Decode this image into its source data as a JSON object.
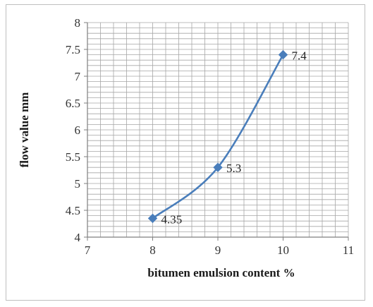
{
  "chart_data": {
    "type": "line",
    "xlabel": "bitumen emulsion content %",
    "ylabel": "flow value mm",
    "xlim": [
      7,
      11
    ],
    "ylim": [
      4,
      8
    ],
    "x_ticks": [
      "7",
      "8",
      "9",
      "10",
      "11"
    ],
    "y_ticks": [
      "4",
      "4.5",
      "5",
      "5.5",
      "6",
      "6.5",
      "7",
      "7.5",
      "8"
    ],
    "grid": "on (minor gridlines)",
    "smooth": true,
    "series": [
      {
        "color": "#4a7ebb",
        "marker": "diamond",
        "x": [
          8,
          9,
          10
        ],
        "y": [
          4.35,
          5.3,
          7.4
        ],
        "data_labels": [
          "4.35",
          "5.3",
          "7.4"
        ]
      }
    ]
  }
}
